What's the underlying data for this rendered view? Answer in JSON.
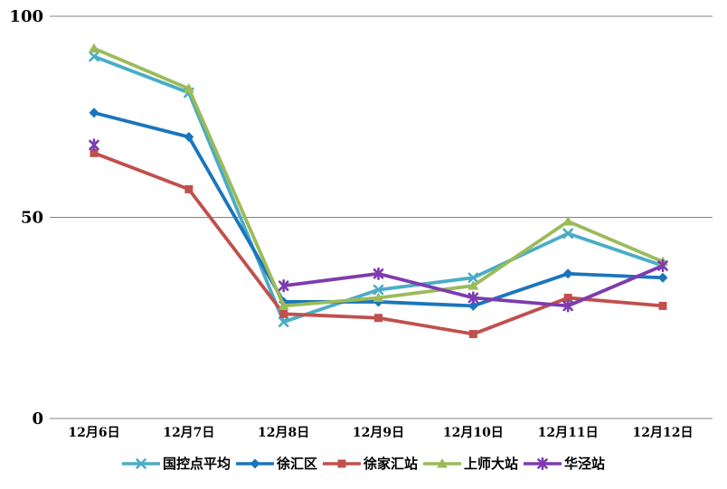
{
  "chart_data": {
    "type": "line",
    "title": "",
    "xlabel": "",
    "ylabel": "",
    "categories": [
      "12月6日",
      "12月7日",
      "12月8日",
      "12月9日",
      "12月10日",
      "12月11日",
      "12月12日"
    ],
    "series": [
      {
        "name": "国控点平均",
        "color": "#4BACC6",
        "marker": "x",
        "values": [
          90,
          81,
          24,
          32,
          35,
          46,
          38
        ]
      },
      {
        "name": "徐汇区",
        "color": "#1B75BC",
        "marker": "diamond",
        "values": [
          76,
          70,
          29,
          29,
          28,
          36,
          35
        ]
      },
      {
        "name": "徐家汇站",
        "color": "#C0504D",
        "marker": "square",
        "values": [
          66,
          57,
          26,
          25,
          21,
          30,
          28
        ]
      },
      {
        "name": "上师大站",
        "color": "#9BBB59",
        "marker": "triangle",
        "values": [
          92,
          82,
          28,
          30,
          33,
          49,
          39
        ]
      },
      {
        "name": "华泾站",
        "color": "#7D3CAF",
        "marker": "asterisk",
        "values": [
          68,
          null,
          33,
          36,
          30,
          28,
          38
        ]
      }
    ],
    "ylim": [
      0,
      100
    ],
    "yticks": [
      0,
      50,
      100
    ],
    "grid": true,
    "legend_position": "bottom"
  },
  "colors": {
    "gridline": "#808080",
    "axis_text": "#000000",
    "background": "#FFFFFF"
  }
}
